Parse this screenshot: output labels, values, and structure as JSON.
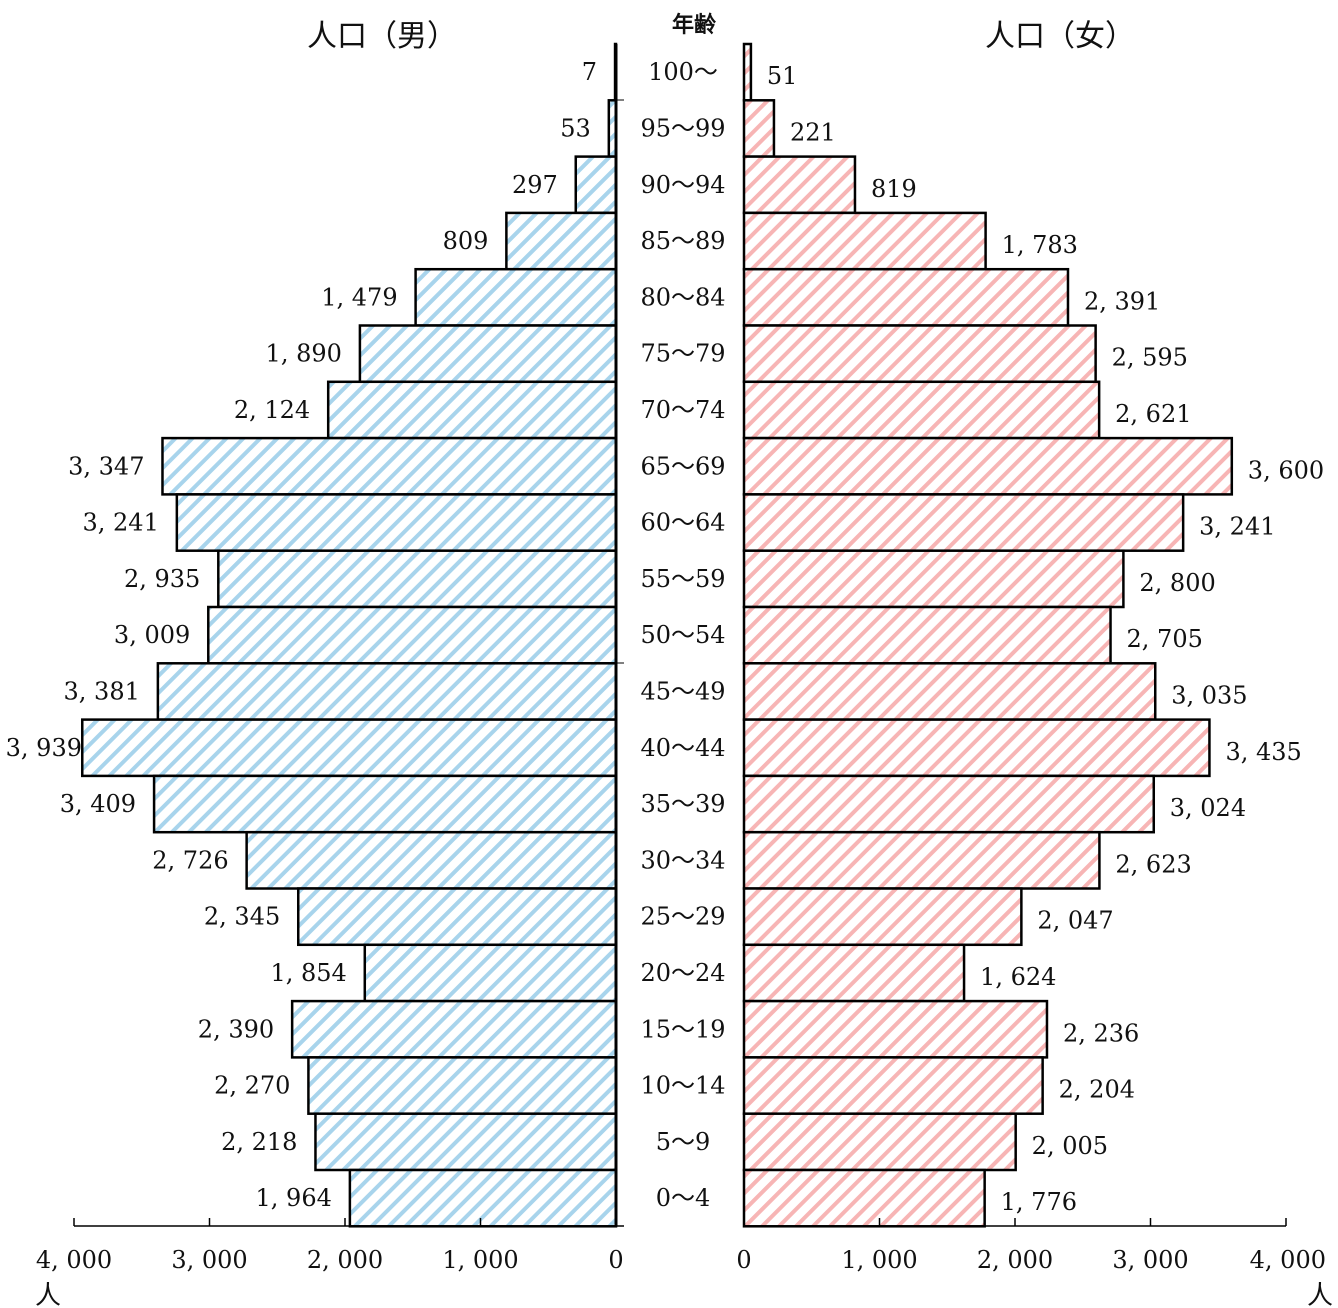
{
  "chart_data": {
    "type": "bar",
    "orientation": "horizontal",
    "layout": "population-pyramid",
    "age_axis_title": "年齢",
    "categories": [
      "100〜",
      "95〜99",
      "90〜94",
      "85〜89",
      "80〜84",
      "75〜79",
      "70〜74",
      "65〜69",
      "60〜64",
      "55〜59",
      "50〜54",
      "45〜49",
      "40〜44",
      "35〜39",
      "30〜34",
      "25〜29",
      "20〜24",
      "15〜19",
      "10〜14",
      "5〜9",
      "0〜4"
    ],
    "series": [
      {
        "name": "人口（男）",
        "side": "left",
        "color": "#a8d4ec",
        "values": [
          7,
          53,
          297,
          809,
          1479,
          1890,
          2124,
          3347,
          3241,
          2935,
          3009,
          3381,
          3939,
          3409,
          2726,
          2345,
          1854,
          2390,
          2270,
          2218,
          1964
        ],
        "value_labels": [
          "7",
          "53",
          "297",
          "809",
          "1, 479",
          "1, 890",
          "2, 124",
          "3, 347",
          "3, 241",
          "2, 935",
          "3, 009",
          "3, 381",
          "3, 939",
          "3, 409",
          "2, 726",
          "2, 345",
          "1, 854",
          "2, 390",
          "2, 270",
          "2, 218",
          "1, 964"
        ]
      },
      {
        "name": "人口（女）",
        "side": "right",
        "color": "#f7b5b5",
        "values": [
          51,
          221,
          819,
          1783,
          2391,
          2595,
          2621,
          3600,
          3241,
          2800,
          2705,
          3035,
          3435,
          3024,
          2623,
          2047,
          1624,
          2236,
          2204,
          2005,
          1776
        ],
        "value_labels": [
          "51",
          "221",
          "819",
          "1, 783",
          "2, 391",
          "2, 595",
          "2, 621",
          "3, 600",
          "3, 241",
          "2, 800",
          "2, 705",
          "3, 035",
          "3, 435",
          "3, 024",
          "2, 623",
          "2, 047",
          "1, 624",
          "2, 236",
          "2, 204",
          "2, 005",
          "1, 776"
        ]
      }
    ],
    "xlim": [
      0,
      4000
    ],
    "left_ticks": [
      "4, 000",
      "3, 000",
      "2, 000",
      "1, 000",
      "0"
    ],
    "right_ticks": [
      "0",
      "1, 000",
      "2, 000",
      "3, 000",
      "4, 000"
    ],
    "unit_label": "人",
    "grid": false,
    "legend": "none"
  }
}
